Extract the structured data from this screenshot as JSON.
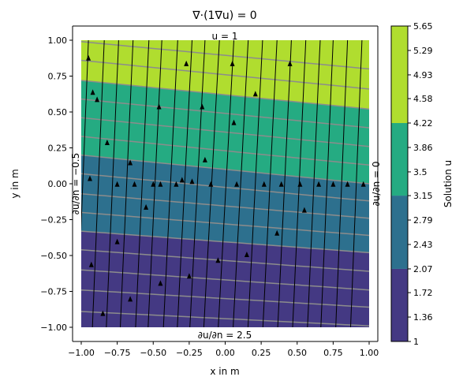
{
  "chart_data": {
    "type": "contour",
    "title": "∇·(1∇u) = 0",
    "xlabel": "x in m",
    "ylabel": "y in m",
    "xlim": [
      -1.0,
      1.0
    ],
    "ylim": [
      -1.0,
      1.0
    ],
    "xticks": [
      "−1.00",
      "−0.75",
      "−0.50",
      "−0.25",
      "0.00",
      "0.25",
      "0.50",
      "0.75",
      "1.00"
    ],
    "xtick_values": [
      -1.0,
      -0.75,
      -0.5,
      -0.25,
      0.0,
      0.25,
      0.5,
      0.75,
      1.0
    ],
    "yticks": [
      "1.00",
      "0.75",
      "0.50",
      "0.25",
      "0.00",
      "−0.25",
      "−0.50",
      "−0.75",
      "−1.00"
    ],
    "ytick_values": [
      1.0,
      0.75,
      0.5,
      0.25,
      0.0,
      -0.25,
      -0.5,
      -0.75,
      -1.0
    ],
    "annotations": {
      "top": "u = 1",
      "bottom": "∂u/∂n = 2.5",
      "left": "∂u/∂n = −0.5",
      "right": "∂u/∂n = 0"
    },
    "colorbar": {
      "label": "Solution u",
      "ticks": [
        "5.65",
        "5.29",
        "4.93",
        "4.58",
        "4.22",
        "3.86",
        "3.5",
        "3.15",
        "2.79",
        "2.43",
        "2.07",
        "1.72",
        "1.36",
        "1"
      ],
      "tick_values": [
        5.65,
        5.29,
        4.93,
        4.58,
        4.22,
        3.86,
        3.5,
        3.15,
        2.79,
        2.43,
        2.07,
        1.72,
        1.36,
        1.0
      ],
      "bands": [
        {
          "from": 1.0,
          "to": 2.07,
          "color": "#443983"
        },
        {
          "from": 2.07,
          "to": 3.15,
          "color": "#2d708e"
        },
        {
          "from": 3.15,
          "to": 4.22,
          "color": "#25ab82"
        },
        {
          "from": 4.22,
          "to": 5.65,
          "color": "#b0dd2f"
        }
      ]
    },
    "filled_band_boundaries": [
      {
        "level": 2.07,
        "y_at_x_minus1": -0.33,
        "y_at_x_plus1": -0.48
      },
      {
        "level": 3.15,
        "y_at_x_minus1": 0.2,
        "y_at_x_plus1": 0.0
      },
      {
        "level": 4.22,
        "y_at_x_minus1": 0.72,
        "y_at_x_plus1": 0.52
      }
    ],
    "contour_lines": [
      {
        "y_at_x_minus1": -0.89,
        "y_at_x_plus1": -0.99
      },
      {
        "y_at_x_minus1": -0.74,
        "y_at_x_plus1": -0.86
      },
      {
        "y_at_x_minus1": -0.6,
        "y_at_x_plus1": -0.74
      },
      {
        "y_at_x_minus1": -0.46,
        "y_at_x_plus1": -0.61
      },
      {
        "y_at_x_minus1": -0.33,
        "y_at_x_plus1": -0.48
      },
      {
        "y_at_x_minus1": -0.2,
        "y_at_x_plus1": -0.36
      },
      {
        "y_at_x_minus1": -0.07,
        "y_at_x_plus1": -0.24
      },
      {
        "y_at_x_minus1": 0.07,
        "y_at_x_plus1": -0.12
      },
      {
        "y_at_x_minus1": 0.2,
        "y_at_x_plus1": 0.0
      },
      {
        "y_at_x_minus1": 0.33,
        "y_at_x_plus1": 0.13
      },
      {
        "y_at_x_minus1": 0.46,
        "y_at_x_plus1": 0.26
      },
      {
        "y_at_x_minus1": 0.59,
        "y_at_x_plus1": 0.39
      },
      {
        "y_at_x_minus1": 0.72,
        "y_at_x_plus1": 0.52
      },
      {
        "y_at_x_minus1": 0.86,
        "y_at_x_plus1": 0.66
      },
      {
        "y_at_x_minus1": 0.99,
        "y_at_x_plus1": 0.8
      }
    ],
    "streamlines_x_at_top": [
      -0.95,
      -0.84,
      -0.74,
      -0.64,
      -0.53,
      -0.44,
      -0.33,
      -0.23,
      -0.14,
      -0.04,
      0.06,
      0.16,
      0.26,
      0.36,
      0.46,
      0.56,
      0.66,
      0.75,
      0.85,
      0.95
    ],
    "streamline_arrows": [
      [
        -0.95,
        0.87
      ],
      [
        -0.92,
        0.63
      ],
      [
        -0.89,
        0.58
      ],
      [
        -0.82,
        0.28
      ],
      [
        -0.66,
        0.14
      ],
      [
        -0.46,
        0.53
      ],
      [
        -0.27,
        0.83
      ],
      [
        -0.16,
        0.53
      ],
      [
        -0.14,
        0.16
      ],
      [
        0.05,
        0.83
      ],
      [
        0.21,
        0.62
      ],
      [
        0.45,
        0.83
      ],
      [
        0.06,
        0.42
      ],
      [
        -0.94,
        0.03
      ],
      [
        -0.75,
        -0.01
      ],
      [
        -0.63,
        -0.01
      ],
      [
        -0.5,
        -0.01
      ],
      [
        -0.45,
        -0.01
      ],
      [
        -0.34,
        -0.01
      ],
      [
        -0.3,
        0.02
      ],
      [
        -0.23,
        0.01
      ],
      [
        -0.1,
        -0.01
      ],
      [
        0.08,
        -0.01
      ],
      [
        0.27,
        -0.01
      ],
      [
        0.39,
        -0.01
      ],
      [
        0.52,
        -0.01
      ],
      [
        0.65,
        -0.01
      ],
      [
        0.75,
        -0.01
      ],
      [
        0.85,
        -0.01
      ],
      [
        0.96,
        -0.01
      ],
      [
        -0.55,
        -0.17
      ],
      [
        -0.75,
        -0.41
      ],
      [
        -0.93,
        -0.57
      ],
      [
        -0.66,
        -0.81
      ],
      [
        -0.85,
        -0.91
      ],
      [
        -0.45,
        -0.7
      ],
      [
        -0.25,
        -0.65
      ],
      [
        -0.05,
        -0.54
      ],
      [
        0.15,
        -0.5
      ],
      [
        0.36,
        -0.35
      ],
      [
        0.55,
        -0.19
      ]
    ]
  }
}
